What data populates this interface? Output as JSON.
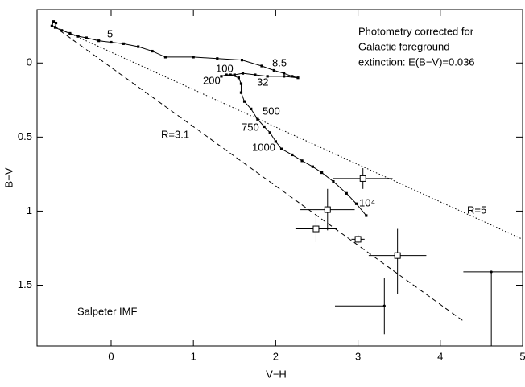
{
  "chart_data": {
    "type": "scatter",
    "xlabel": "V−H",
    "ylabel": "B−V",
    "xlim": [
      -0.9,
      5
    ],
    "ylim": [
      1.91,
      -0.36
    ],
    "xticks": [
      0,
      1,
      2,
      3,
      4,
      5
    ],
    "yticks": [
      0,
      0.5,
      1,
      1.5
    ],
    "track": {
      "color": "#000000",
      "x": [
        -0.72,
        -0.7,
        -0.67,
        -0.68,
        -0.6,
        -0.5,
        -0.4,
        -0.3,
        -0.15,
        0,
        0.15,
        0.33,
        0.5,
        0.66,
        1.0,
        1.29,
        1.59,
        1.83,
        1.98,
        2.1,
        2.2,
        2.27,
        2.1,
        1.9,
        1.75,
        1.6,
        1.5,
        1.4,
        1.34,
        1.45,
        1.55,
        1.58,
        1.58,
        1.62,
        1.7,
        1.78,
        1.86,
        1.93,
        2.0,
        2.07,
        2.2,
        2.32,
        2.45,
        2.56,
        2.7,
        2.86,
        2.98,
        3.1
      ],
      "values": [
        -0.25,
        -0.28,
        -0.27,
        -0.24,
        -0.22,
        -0.2,
        -0.18,
        -0.17,
        -0.15,
        -0.14,
        -0.13,
        -0.11,
        -0.08,
        -0.04,
        -0.04,
        -0.03,
        -0.02,
        0.02,
        0.05,
        0.07,
        0.09,
        0.1,
        0.09,
        0.09,
        0.08,
        0.07,
        0.08,
        0.08,
        0.09,
        0.08,
        0.1,
        0.14,
        0.2,
        0.26,
        0.31,
        0.38,
        0.43,
        0.47,
        0.53,
        0.58,
        0.62,
        0.66,
        0.7,
        0.74,
        0.8,
        0.88,
        0.95,
        1.03
      ]
    },
    "reddening_lines": [
      {
        "label": "R=3.1",
        "x": [
          -0.7,
          4.3
        ],
        "values": [
          -0.25,
          1.75
        ],
        "style": "dashed"
      },
      {
        "label": "R=5",
        "x": [
          -0.7,
          5
        ],
        "values": [
          -0.25,
          1.19
        ],
        "style": "dotted"
      }
    ],
    "points": {
      "x": [
        3.06,
        2.63,
        2.49,
        3.0,
        3.48,
        3.32,
        4.62
      ],
      "values": [
        0.78,
        0.99,
        1.12,
        1.19,
        1.3,
        1.64,
        1.41
      ],
      "xerr_minus": [
        0.36,
        0.33,
        0.25,
        0.08,
        0.35,
        0.6,
        0.34
      ],
      "xerr_plus": [
        0.36,
        0.33,
        0.25,
        0.08,
        0.35,
        0,
        0.38
      ],
      "yerr_minus": [
        0.07,
        0.14,
        0.09,
        0.03,
        0.18,
        0.19,
        0
      ],
      "yerr_plus": [
        0.07,
        0.14,
        0.09,
        0.03,
        0.26,
        0.19,
        0.55
      ],
      "marker": [
        "square",
        "square",
        "square",
        "square",
        "square",
        "dot",
        "dot"
      ]
    },
    "age_labels": [
      "5",
      "8.5",
      "100",
      "200",
      "32",
      "500",
      "750",
      "1000",
      "10⁴"
    ],
    "imf_label": "Salpeter IMF",
    "note": [
      "Photometry corrected for",
      "Galactic foreground",
      "extinction: E(B−V)=0.036"
    ]
  }
}
